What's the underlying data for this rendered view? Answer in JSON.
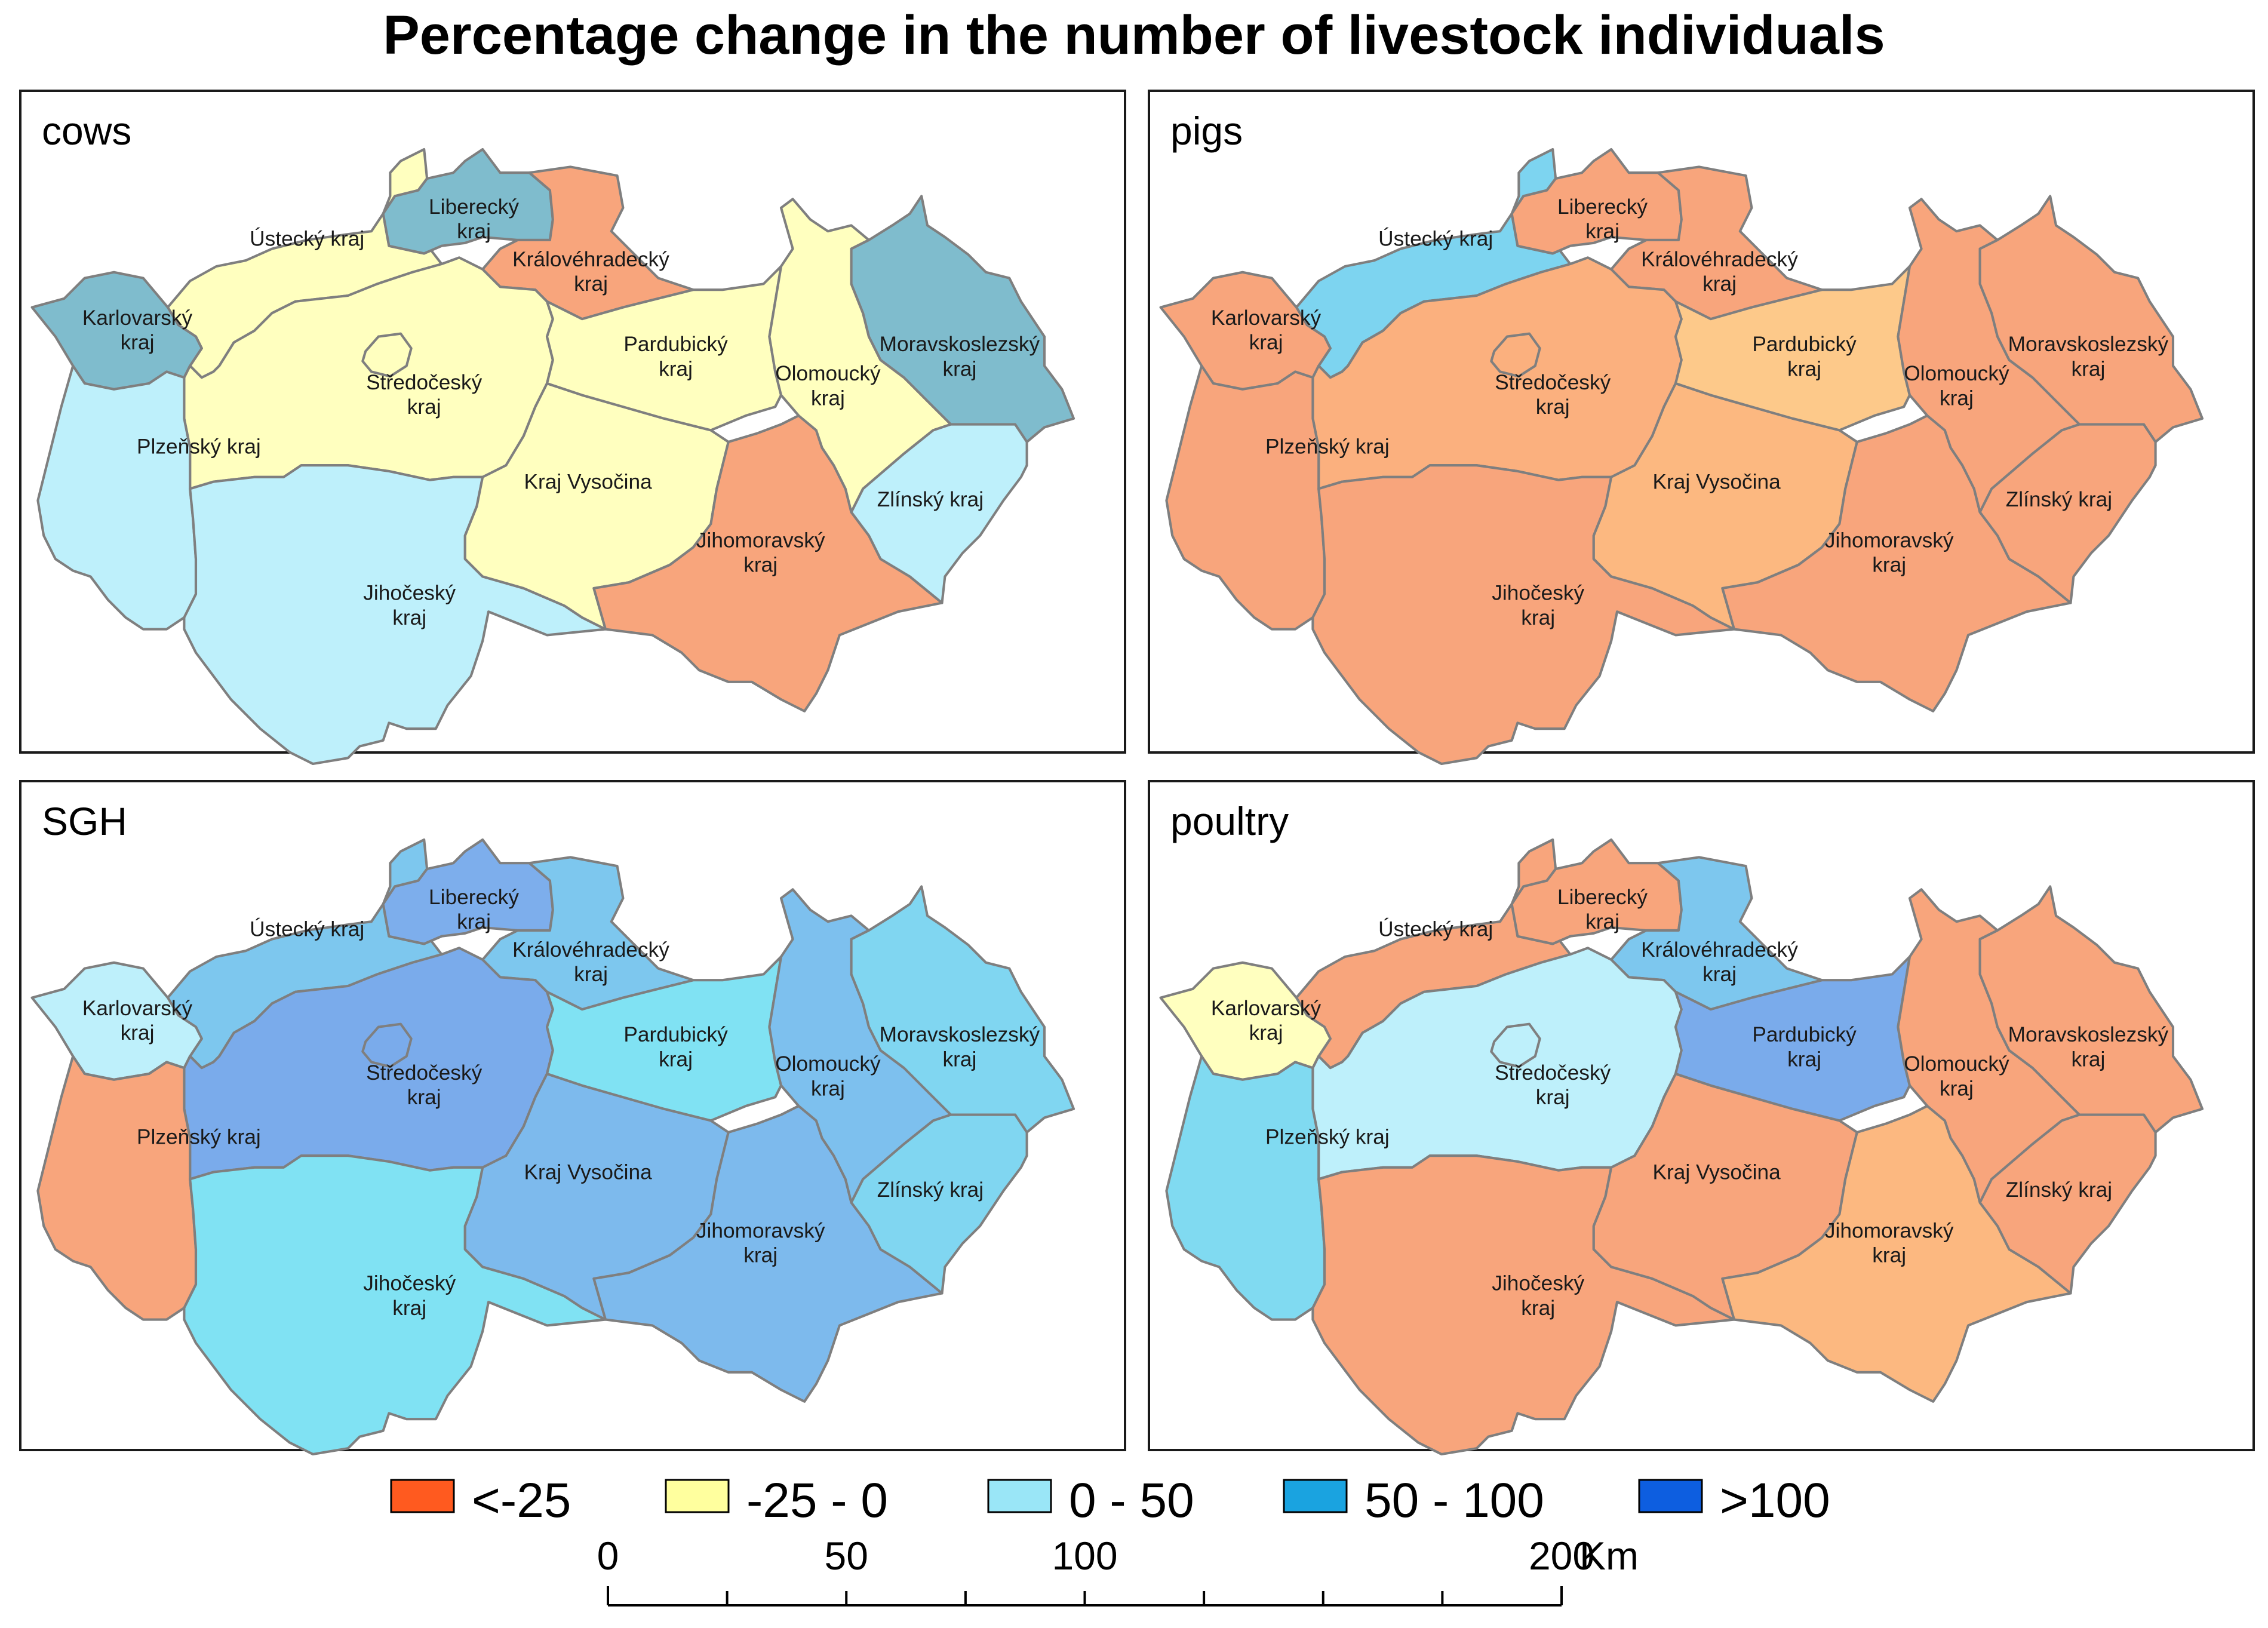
{
  "title": "Percentage change in the number of livestock individuals",
  "classes": [
    {
      "id": "lt-25",
      "label": "<-25",
      "color": "#ff5a1f"
    },
    {
      "id": "m25-0",
      "label": "-25 - 0",
      "color": "#ffff9e"
    },
    {
      "id": "0-50",
      "label": "0 - 50",
      "color": "#9ae6f7"
    },
    {
      "id": "50-100",
      "label": "50 - 100",
      "color": "#1aa3e0"
    },
    {
      "id": "gt100",
      "label": ">100",
      "color": "#0d5ee0"
    }
  ],
  "region_labels": {
    "karlovarsky": [
      "Karlovarský",
      "kraj"
    ],
    "ustecky": [
      "Ústecký kraj"
    ],
    "liberecky": [
      "Liberecký",
      "kraj"
    ],
    "kralovehradecky": [
      "Královéhradecký",
      "kraj"
    ],
    "pardubicky": [
      "Pardubický",
      "kraj"
    ],
    "stredocesky": [
      "Středočeský",
      "kraj"
    ],
    "plzensky": [
      "Plzeňský kraj"
    ],
    "jihocesky": [
      "Jihočeský",
      "kraj"
    ],
    "vysocina": [
      "Kraj Vysočina"
    ],
    "jihomoravsky": [
      "Jihomoravský",
      "kraj"
    ],
    "olomoucky": [
      "Olomoucký",
      "kraj"
    ],
    "moravskoslezsky": [
      "Moravskoslezský",
      "kraj"
    ],
    "zlinsky": [
      "Zlínský kraj"
    ]
  },
  "panels": [
    {
      "name": "cows",
      "colors": {
        "karlovarsky": "#7fbccd",
        "ustecky": "#ffffbf",
        "liberecky": "#7fbccd",
        "kralovehradecky": "#f8a57c",
        "pardubicky": "#ffffbf",
        "stredocesky": "#ffffbf",
        "plzensky": "#bef0fb",
        "jihocesky": "#bef0fb",
        "vysocina": "#ffffbf",
        "jihomoravsky": "#f8a57c",
        "olomoucky": "#ffffbf",
        "moravskoslezsky": "#7fbccd",
        "zlinsky": "#bef0fb"
      }
    },
    {
      "name": "pigs",
      "colors": {
        "karlovarsky": "#f8a57c",
        "ustecky": "#7dd4f0",
        "liberecky": "#f8a57c",
        "kralovehradecky": "#f8a57c",
        "pardubicky": "#fdc98a",
        "stredocesky": "#fbb07e",
        "plzensky": "#f8a57c",
        "jihocesky": "#f8a57c",
        "vysocina": "#fcb880",
        "jihomoravsky": "#f8a57c",
        "olomoucky": "#f8a57c",
        "moravskoslezsky": "#f8a57c",
        "zlinsky": "#f8a57c"
      }
    },
    {
      "name": "SGH",
      "colors": {
        "karlovarsky": "#bef0fb",
        "ustecky": "#7dc7ee",
        "liberecky": "#7daeec",
        "kralovehradecky": "#7dc7ee",
        "pardubicky": "#80e2f3",
        "stredocesky": "#7aabeb",
        "plzensky": "#f8a57c",
        "jihocesky": "#80e2f3",
        "vysocina": "#7dbaed",
        "jihomoravsky": "#7dbaed",
        "olomoucky": "#7dc0ee",
        "moravskoslezsky": "#80d6f1",
        "zlinsky": "#80d6f1"
      }
    },
    {
      "name": "poultry",
      "colors": {
        "karlovarsky": "#ffffbf",
        "ustecky": "#f8a57c",
        "liberecky": "#f8a57c",
        "kralovehradecky": "#7dc7ee",
        "pardubicky": "#7aabeb",
        "stredocesky": "#bef0fb",
        "plzensky": "#80daf1",
        "jihocesky": "#f8a57c",
        "vysocina": "#f8a57c",
        "jihomoravsky": "#fcb880",
        "olomoucky": "#f8a57c",
        "moravskoslezsky": "#f8a57c",
        "zlinsky": "#f8a57c"
      }
    }
  ],
  "scale": {
    "ticks": [
      "0",
      "50",
      "100",
      "200"
    ],
    "unit": "Km",
    "values": [
      0,
      50,
      100,
      200
    ]
  }
}
